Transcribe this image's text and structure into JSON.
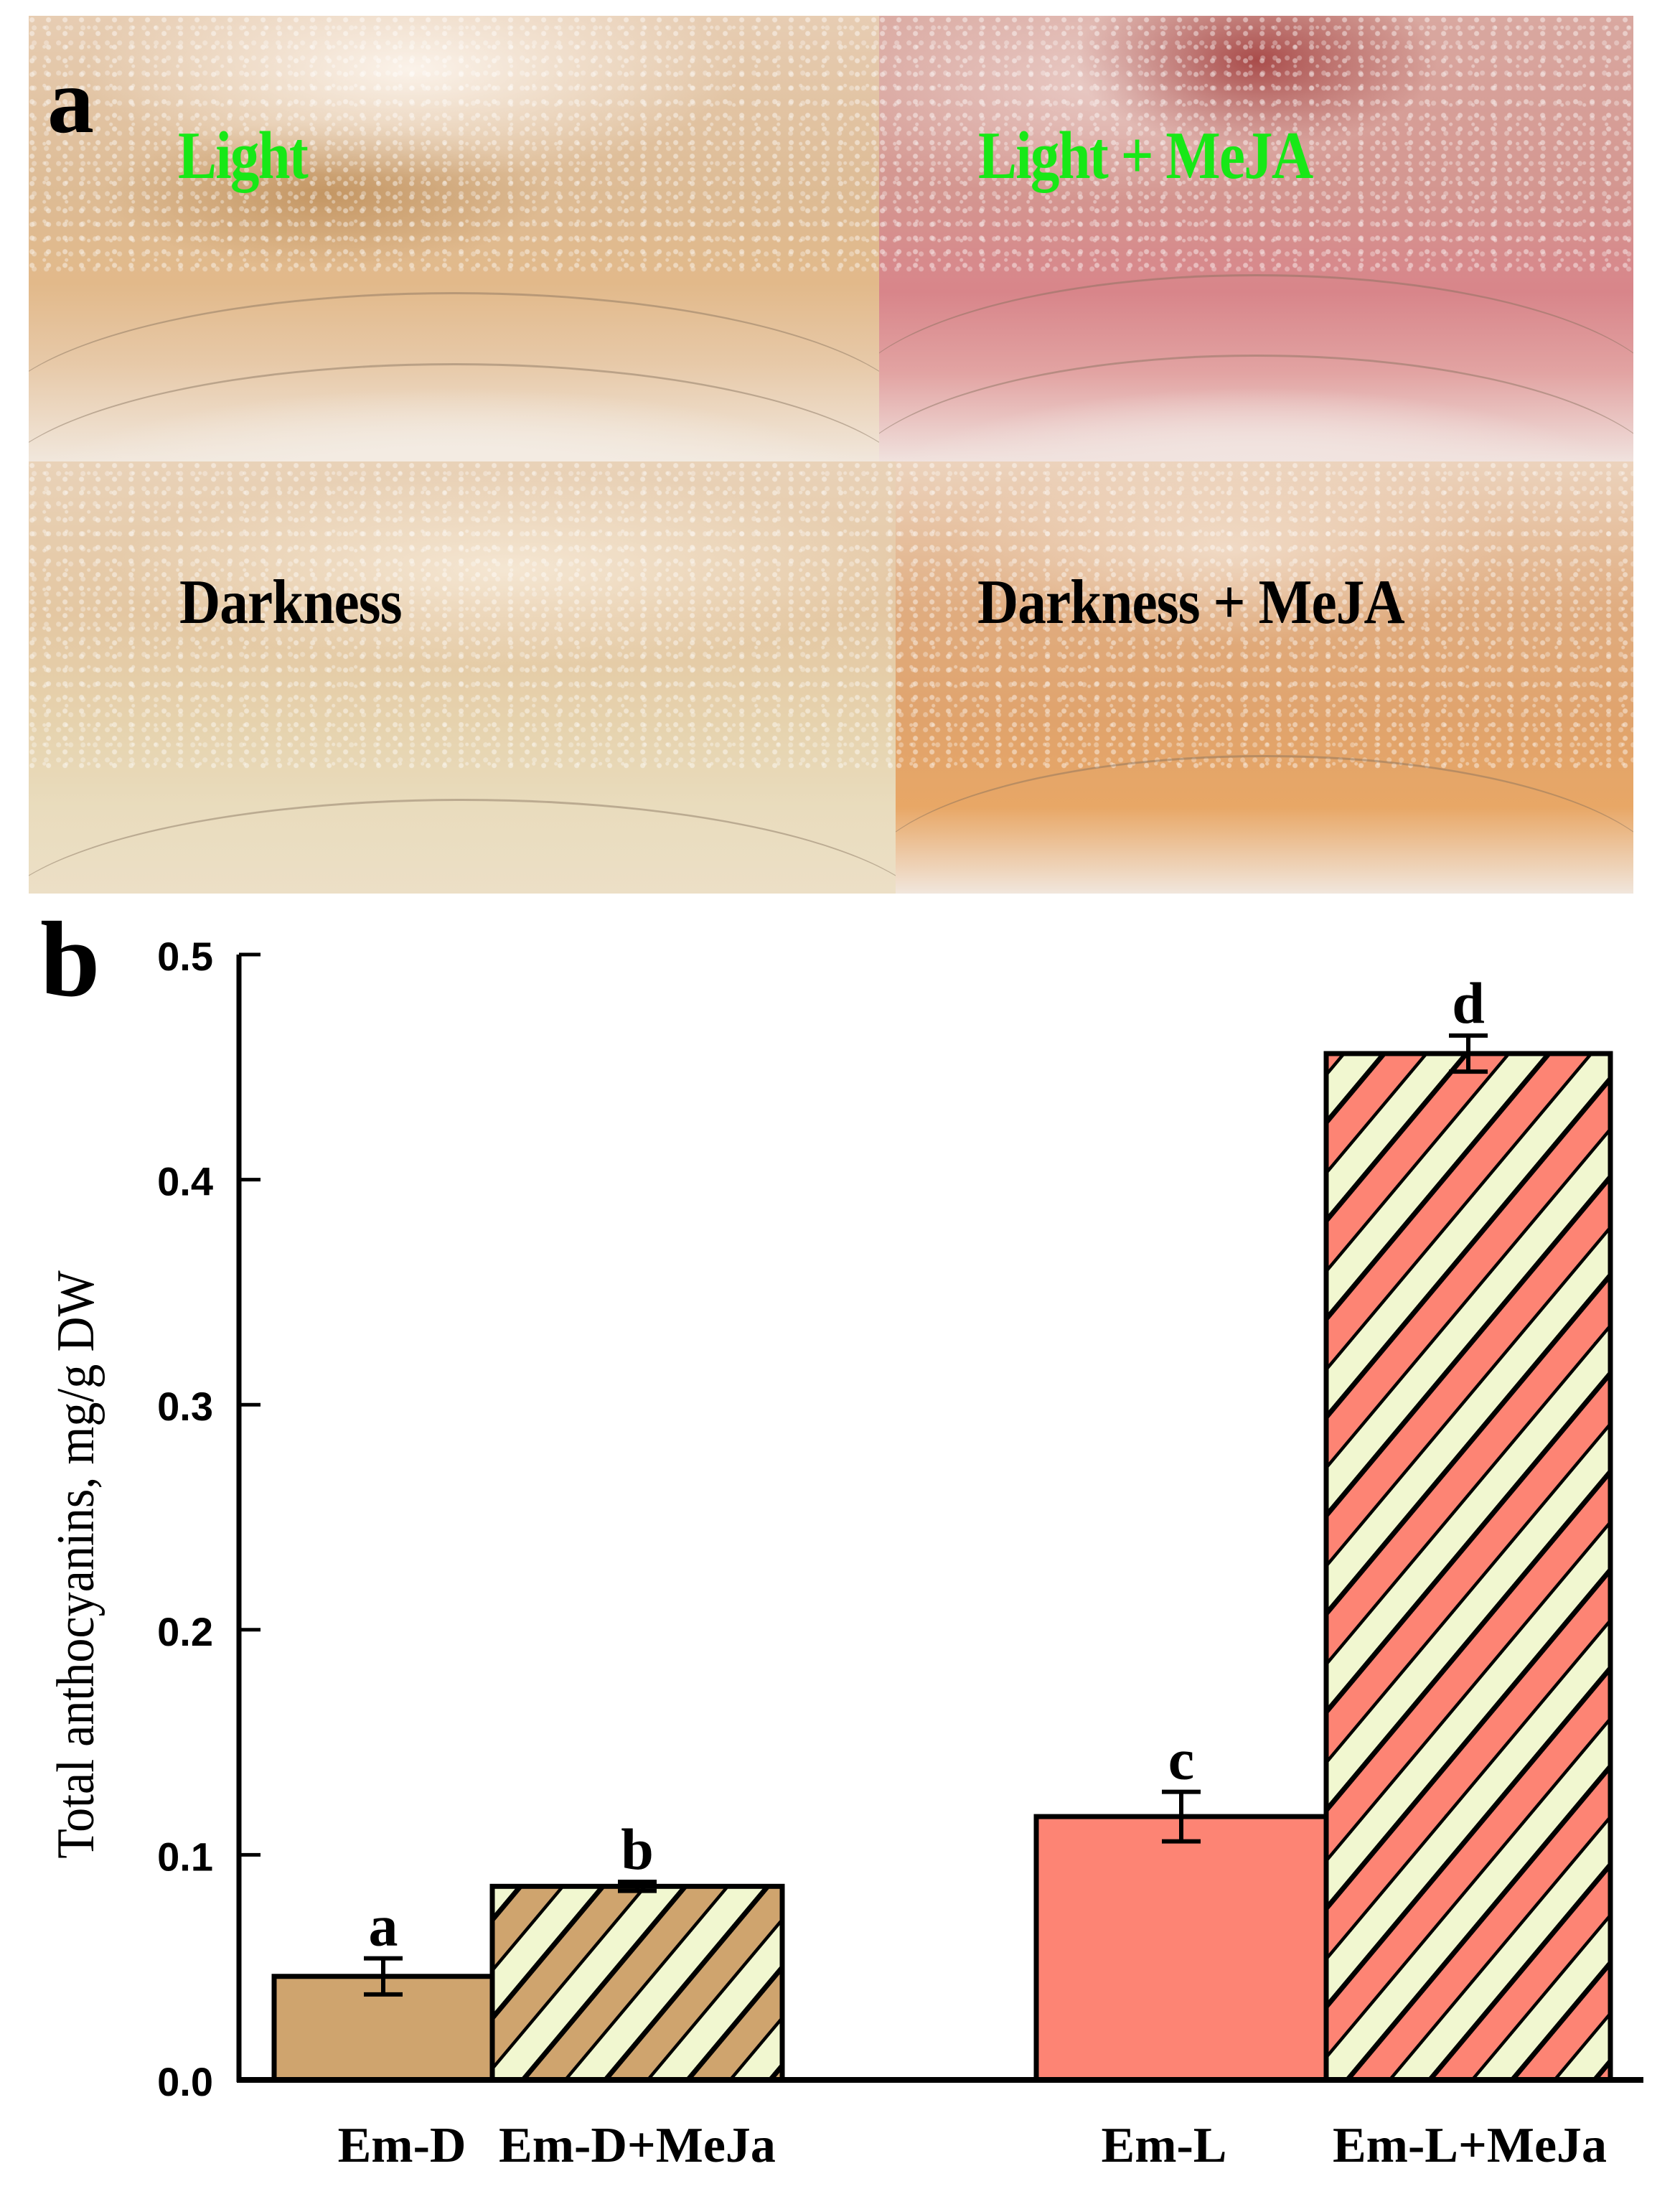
{
  "figure": {
    "panel_a": {
      "letter": "a",
      "labels": {
        "top_left": "Light",
        "top_right": "Light + MeJA",
        "bottom_left": "Darkness",
        "bottom_right": "Darkness + MeJA"
      },
      "label_colors": {
        "light": "#17e817",
        "darkness": "#000000"
      }
    },
    "panel_b": {
      "letter": "b"
    }
  },
  "chart_data": {
    "type": "bar",
    "title": "",
    "xlabel": "",
    "ylabel": "Total anthocyanins, mg/g DW",
    "ylim": [
      0.0,
      0.5
    ],
    "yticks": [
      "0.0",
      "0.1",
      "0.2",
      "0.3",
      "0.4",
      "0.5"
    ],
    "grid": false,
    "legend": null,
    "categories": [
      "Em-D",
      "Em-D+MeJa",
      "Em-L",
      "Em-L+MeJa"
    ],
    "values": [
      0.046,
      0.086,
      0.117,
      0.456
    ],
    "errors": [
      0.008,
      0.002,
      0.011,
      0.008
    ],
    "significance_letters": [
      "a",
      "b",
      "c",
      "d"
    ],
    "fills": [
      {
        "base": "#cfa46e",
        "hatch": null
      },
      {
        "base": "#cfa46e",
        "hatch": "#f1f7d0"
      },
      {
        "base": "#fd8474",
        "hatch": null
      },
      {
        "base": "#fd8474",
        "hatch": "#f1f7d0"
      }
    ]
  }
}
